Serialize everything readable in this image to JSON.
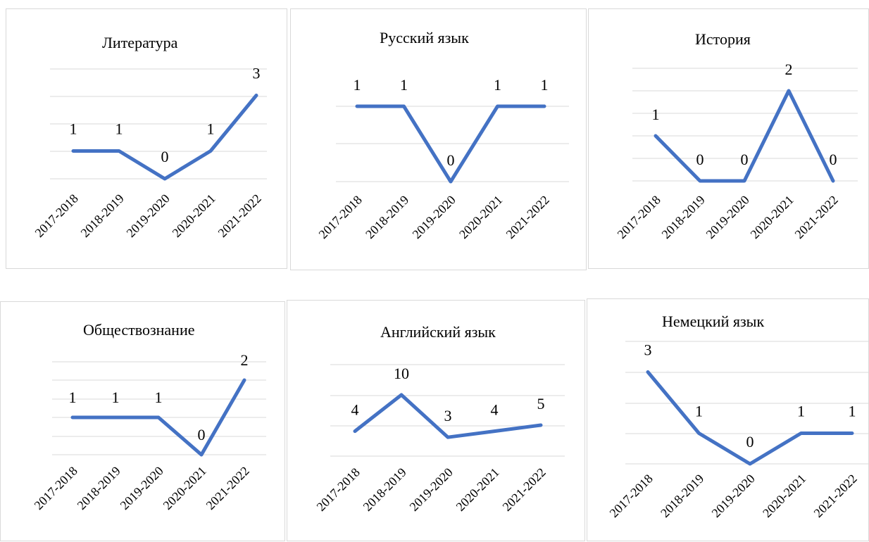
{
  "colors": {
    "series": "#4472c4",
    "grid": "#d9d9d9"
  },
  "chart_data": [
    {
      "type": "line",
      "title": "Литература",
      "categories": [
        "2017-2018",
        "2018-2019",
        "2019-2020",
        "2020-2021",
        "2021-2022"
      ],
      "values": [
        1,
        1,
        0,
        1,
        3
      ],
      "data_labels": [
        "1",
        "1",
        "0",
        "1",
        "3"
      ],
      "ylim": [
        0,
        4
      ]
    },
    {
      "type": "line",
      "title": "Русский язык",
      "categories": [
        "2017-2018",
        "2018-2019",
        "2019-2020",
        "2020-2021",
        "2021-2022"
      ],
      "values": [
        1,
        1,
        0,
        1,
        1
      ],
      "data_labels": [
        "1",
        "1",
        "0",
        "1",
        "1"
      ],
      "ylim": [
        0,
        1.5
      ]
    },
    {
      "type": "line",
      "title": "История",
      "categories": [
        "2017-2018",
        "2018-2019",
        "2019-2020",
        "2020-2021",
        "2021-2022"
      ],
      "values": [
        1,
        0,
        0,
        2,
        0
      ],
      "data_labels": [
        "1",
        "0",
        "0",
        "2",
        "0"
      ],
      "ylim": [
        0,
        2.5
      ]
    },
    {
      "type": "line",
      "title": "Обществознание",
      "categories": [
        "2017-2018",
        "2018-2019",
        "2019-2020",
        "2020-2021",
        "2021-2022"
      ],
      "values": [
        1,
        1,
        1,
        0,
        2
      ],
      "data_labels": [
        "1",
        "1",
        "1",
        "0",
        "2"
      ],
      "ylim": [
        0,
        2.5
      ]
    },
    {
      "type": "line",
      "title": "Английский язык",
      "categories": [
        "2017-2018",
        "2018-2019",
        "2019-2020",
        "2020-2021",
        "2021-2022"
      ],
      "values": [
        4,
        10,
        3,
        4,
        5
      ],
      "data_labels": [
        "4",
        "10",
        "3",
        "4",
        "5"
      ],
      "ylim": [
        -10,
        15
      ]
    },
    {
      "type": "line",
      "title": "Немецкий язык",
      "categories": [
        "2017-2018",
        "2018-2019",
        "2019-2020",
        "2020-2021",
        "2021-2022"
      ],
      "values": [
        3,
        1,
        0,
        1,
        1
      ],
      "data_labels": [
        "3",
        "1",
        "0",
        "1",
        "1"
      ],
      "ylim": [
        0,
        4
      ]
    }
  ]
}
